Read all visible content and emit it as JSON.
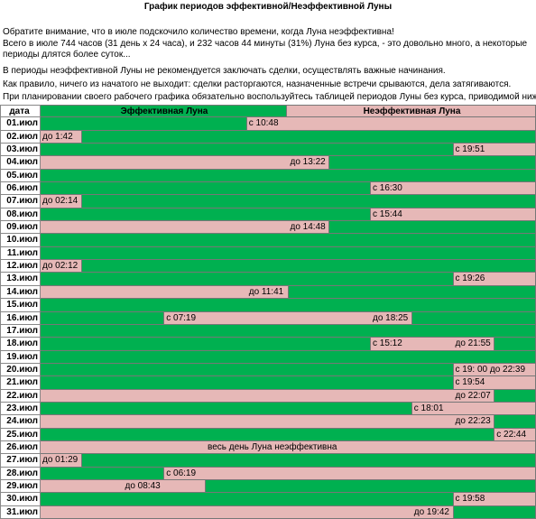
{
  "title": "График  периодов эффективной/Неэффективной Луны",
  "paragraphs": [
    "Обратите внимание, что в июле подскочило количество времени, когда Луна неэффективна!",
    " Всего в июле 744 часов (31 день х 24 часа), и 232 часов 44 минуты (31%) Луна без курса, - это довольно много, а некоторые периоды длятся более суток...",
    "В периоды неэффективной Луны не рекомендуется заключать сделки, осуществлять важные начинания.",
    " Как правило, ничего из начатого не выходит: сделки расторгаются, назначенные встречи срываются, дела затягиваются.",
    "При планировании своего рабочего графика обязательно воспользуйтесь таблицей периодов Луны без курса, приводимой ниже"
  ],
  "table": {
    "header": {
      "date": "дата",
      "effective": "Эффективная Луна",
      "ineffective": "Неэффективная Луна"
    },
    "rows": [
      {
        "date": "01.июл",
        "cells": [
          {
            "state": "effective",
            "span": 5
          },
          {
            "state": "ineffective",
            "span": 7,
            "text": "с 10:48"
          }
        ]
      },
      {
        "date": "02.июл",
        "cells": [
          {
            "state": "ineffective",
            "span": 1,
            "text": "до 1:42"
          },
          {
            "state": "effective",
            "span": 11
          }
        ]
      },
      {
        "date": "03.июл",
        "cells": [
          {
            "state": "effective",
            "span": 10
          },
          {
            "state": "ineffective",
            "span": 2,
            "text": "с 19:51"
          }
        ]
      },
      {
        "date": "04.июл",
        "cells": [
          {
            "state": "ineffective",
            "span": 6
          },
          {
            "state": "ineffective",
            "span": 1,
            "text": "до 13:22"
          },
          {
            "state": "effective",
            "span": 5
          }
        ]
      },
      {
        "date": "05.июл",
        "cells": [
          {
            "state": "effective",
            "span": 12
          }
        ]
      },
      {
        "date": "06.июл",
        "cells": [
          {
            "state": "effective",
            "span": 8
          },
          {
            "state": "ineffective",
            "span": 4,
            "text": "с 16:30"
          }
        ]
      },
      {
        "date": "07.июл",
        "cells": [
          {
            "state": "ineffective",
            "span": 1,
            "text": "до 02:14"
          },
          {
            "state": "effective",
            "span": 11
          }
        ]
      },
      {
        "date": "08.июл",
        "cells": [
          {
            "state": "effective",
            "span": 8
          },
          {
            "state": "ineffective",
            "span": 4,
            "text": "с 15:44"
          }
        ]
      },
      {
        "date": "09.июл",
        "cells": [
          {
            "state": "ineffective",
            "span": 6
          },
          {
            "state": "ineffective",
            "span": 1,
            "text": "до 14:48"
          },
          {
            "state": "effective",
            "span": 5
          }
        ]
      },
      {
        "date": "10.июл",
        "cells": [
          {
            "state": "effective",
            "span": 12
          }
        ]
      },
      {
        "date": "11.июл",
        "cells": [
          {
            "state": "effective",
            "span": 12
          }
        ]
      },
      {
        "date": "12.июл",
        "cells": [
          {
            "state": "ineffective",
            "span": 1,
            "text": "до 02:12"
          },
          {
            "state": "effective",
            "span": 11
          }
        ]
      },
      {
        "date": "13.июл",
        "cells": [
          {
            "state": "effective",
            "span": 10
          },
          {
            "state": "ineffective",
            "span": 2,
            "text": "с 19:26"
          }
        ]
      },
      {
        "date": "14.июл",
        "cells": [
          {
            "state": "ineffective",
            "span": 5
          },
          {
            "state": "ineffective",
            "span": 1,
            "text": "до 11:41"
          },
          {
            "state": "effective",
            "span": 6
          }
        ]
      },
      {
        "date": "15.июл",
        "cells": [
          {
            "state": "effective",
            "span": 12
          }
        ]
      },
      {
        "date": "16.июл",
        "cells": [
          {
            "state": "effective",
            "span": 3
          },
          {
            "state": "ineffective",
            "span": 1,
            "text": "с 07:19"
          },
          {
            "state": "ineffective",
            "span": 4
          },
          {
            "state": "ineffective",
            "span": 1,
            "text": "до 18:25"
          },
          {
            "state": "effective",
            "span": 3
          }
        ]
      },
      {
        "date": "17.июл",
        "cells": [
          {
            "state": "effective",
            "span": 12
          }
        ]
      },
      {
        "date": "18.июл",
        "cells": [
          {
            "state": "effective",
            "span": 8
          },
          {
            "state": "ineffective",
            "span": 1,
            "text": "с 15:12"
          },
          {
            "state": "ineffective",
            "span": 1
          },
          {
            "state": "ineffective",
            "span": 1,
            "text": "до 21:55"
          },
          {
            "state": "effective",
            "span": 1
          }
        ]
      },
      {
        "date": "19.июл",
        "cells": [
          {
            "state": "effective",
            "span": 12
          }
        ]
      },
      {
        "date": "20.июл",
        "cells": [
          {
            "state": "effective",
            "span": 10
          },
          {
            "state": "ineffective",
            "span": 2,
            "text": "с 19: 00 до 22:39"
          }
        ]
      },
      {
        "date": "21.июл",
        "cells": [
          {
            "state": "effective",
            "span": 10
          },
          {
            "state": "ineffective",
            "span": 2,
            "text": "с 19:54"
          }
        ]
      },
      {
        "date": "22.июл",
        "cells": [
          {
            "state": "ineffective",
            "span": 10
          },
          {
            "state": "ineffective",
            "span": 1,
            "text": "до 22:07"
          },
          {
            "state": "effective",
            "span": 1
          }
        ]
      },
      {
        "date": "23.июл",
        "cells": [
          {
            "state": "effective",
            "span": 9
          },
          {
            "state": "ineffective",
            "span": 3,
            "text": "с 18:01"
          }
        ]
      },
      {
        "date": "24.июл",
        "cells": [
          {
            "state": "ineffective",
            "span": 10
          },
          {
            "state": "ineffective",
            "span": 1,
            "text": "до 22:23"
          },
          {
            "state": "effective",
            "span": 1
          }
        ]
      },
      {
        "date": "25.июл",
        "cells": [
          {
            "state": "effective",
            "span": 11
          },
          {
            "state": "ineffective",
            "span": 1,
            "text": "с 22:44"
          }
        ]
      },
      {
        "date": "26.июл",
        "cells": [
          {
            "state": "ineffective",
            "span": 4
          },
          {
            "state": "ineffective",
            "span": 8,
            "text": "весь  день  Луна неэффективна"
          }
        ]
      },
      {
        "date": "27.июл",
        "cells": [
          {
            "state": "ineffective",
            "span": 1,
            "text": "до 01:29"
          },
          {
            "state": "effective",
            "span": 11
          }
        ]
      },
      {
        "date": "28.июл",
        "cells": [
          {
            "state": "effective",
            "span": 3
          },
          {
            "state": "ineffective",
            "span": 9,
            "text": "с 06:19"
          }
        ]
      },
      {
        "date": "29.июл",
        "cells": [
          {
            "state": "ineffective",
            "span": 2
          },
          {
            "state": "ineffective",
            "span": 2,
            "text": "до 08:43"
          },
          {
            "state": "effective",
            "span": 8
          }
        ]
      },
      {
        "date": "30.июл",
        "cells": [
          {
            "state": "effective",
            "span": 10
          },
          {
            "state": "ineffective",
            "span": 2,
            "text": "с 19:58"
          }
        ]
      },
      {
        "date": "31.июл",
        "cells": [
          {
            "state": "ineffective",
            "span": 9
          },
          {
            "state": "ineffective",
            "span": 1,
            "text": "до 19:42"
          },
          {
            "state": "effective",
            "span": 2
          }
        ]
      }
    ]
  }
}
